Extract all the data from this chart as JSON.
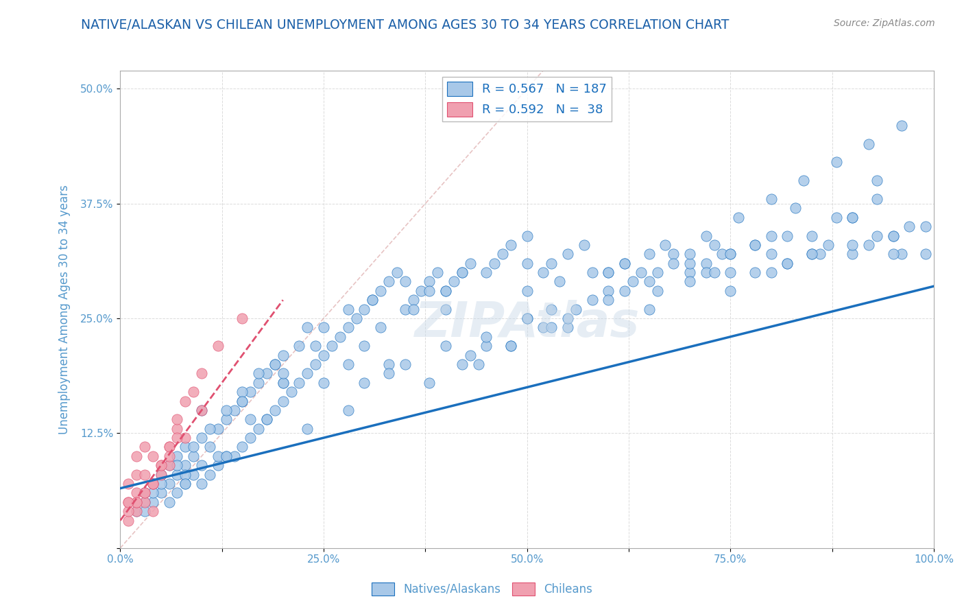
{
  "title": "NATIVE/ALASKAN VS CHILEAN UNEMPLOYMENT AMONG AGES 30 TO 34 YEARS CORRELATION CHART",
  "source_text": "Source: ZipAtlas.com",
  "xlabel": "",
  "ylabel": "Unemployment Among Ages 30 to 34 years",
  "xlim": [
    0,
    1.0
  ],
  "ylim": [
    0,
    0.52
  ],
  "xticks": [
    0.0,
    0.125,
    0.25,
    0.375,
    0.5,
    0.625,
    0.75,
    0.875,
    1.0
  ],
  "xticklabels": [
    "0.0%",
    "",
    "25.0%",
    "",
    "50.0%",
    "",
    "75.0%",
    "",
    "100.0%"
  ],
  "yticks": [
    0.0,
    0.125,
    0.25,
    0.375,
    0.5
  ],
  "yticklabels": [
    "",
    "12.5%",
    "25.0%",
    "37.5%",
    "50.0%"
  ],
  "legend_blue_r": "R = 0.567",
  "legend_blue_n": "N = 187",
  "legend_pink_r": "R = 0.592",
  "legend_pink_n": "N =  38",
  "blue_color": "#a8c8e8",
  "blue_line_color": "#1a6fbd",
  "pink_color": "#f0a0b0",
  "pink_line_color": "#e05070",
  "title_color": "#1a5fa8",
  "axis_color": "#5599cc",
  "watermark": "ZIPAtlas",
  "blue_scatter_x": [
    0.02,
    0.03,
    0.04,
    0.04,
    0.05,
    0.05,
    0.06,
    0.06,
    0.06,
    0.07,
    0.07,
    0.07,
    0.08,
    0.08,
    0.08,
    0.09,
    0.09,
    0.1,
    0.1,
    0.1,
    0.11,
    0.11,
    0.12,
    0.12,
    0.13,
    0.13,
    0.14,
    0.14,
    0.15,
    0.15,
    0.16,
    0.16,
    0.17,
    0.17,
    0.18,
    0.18,
    0.19,
    0.19,
    0.2,
    0.2,
    0.21,
    0.22,
    0.23,
    0.23,
    0.24,
    0.25,
    0.26,
    0.27,
    0.28,
    0.29,
    0.3,
    0.31,
    0.32,
    0.33,
    0.34,
    0.35,
    0.36,
    0.37,
    0.38,
    0.39,
    0.4,
    0.41,
    0.42,
    0.43,
    0.45,
    0.47,
    0.48,
    0.5,
    0.52,
    0.53,
    0.55,
    0.57,
    0.6,
    0.62,
    0.65,
    0.67,
    0.7,
    0.72,
    0.75,
    0.78,
    0.8,
    0.82,
    0.85,
    0.87,
    0.9,
    0.92,
    0.95,
    0.97,
    0.99,
    0.03,
    0.05,
    0.07,
    0.09,
    0.11,
    0.13,
    0.15,
    0.17,
    0.19,
    0.22,
    0.25,
    0.28,
    0.31,
    0.35,
    0.38,
    0.42,
    0.46,
    0.5,
    0.54,
    0.58,
    0.62,
    0.66,
    0.7,
    0.74,
    0.78,
    0.82,
    0.86,
    0.9,
    0.93,
    0.96,
    0.04,
    0.08,
    0.12,
    0.16,
    0.2,
    0.24,
    0.28,
    0.32,
    0.36,
    0.4,
    0.44,
    0.48,
    0.52,
    0.56,
    0.6,
    0.64,
    0.68,
    0.72,
    0.76,
    0.8,
    0.84,
    0.88,
    0.92,
    0.96,
    0.1,
    0.2,
    0.3,
    0.4,
    0.5,
    0.6,
    0.7,
    0.8,
    0.9,
    0.35,
    0.45,
    0.55,
    0.65,
    0.75,
    0.85,
    0.95,
    0.25,
    0.5,
    0.75,
    0.33,
    0.66,
    0.99,
    0.15,
    0.45,
    0.75,
    0.2,
    0.6,
    0.85,
    0.4,
    0.7,
    0.55,
    0.8,
    0.65,
    0.9,
    0.3,
    0.5,
    0.72,
    0.88,
    0.95,
    0.42,
    0.62,
    0.82,
    0.18,
    0.58,
    0.78,
    0.38,
    0.68,
    0.48,
    0.28,
    0.08,
    0.53,
    0.73,
    0.93,
    0.23,
    0.43,
    0.63,
    0.83,
    0.03,
    0.13,
    0.33,
    0.53,
    0.73,
    0.93
  ],
  "blue_scatter_y": [
    0.04,
    0.06,
    0.05,
    0.07,
    0.06,
    0.08,
    0.05,
    0.07,
    0.09,
    0.06,
    0.08,
    0.1,
    0.07,
    0.09,
    0.11,
    0.08,
    0.1,
    0.07,
    0.09,
    0.12,
    0.08,
    0.11,
    0.09,
    0.13,
    0.1,
    0.14,
    0.1,
    0.15,
    0.11,
    0.16,
    0.12,
    0.17,
    0.13,
    0.18,
    0.14,
    0.19,
    0.15,
    0.2,
    0.16,
    0.21,
    0.17,
    0.18,
    0.19,
    0.24,
    0.2,
    0.21,
    0.22,
    0.23,
    0.24,
    0.25,
    0.26,
    0.27,
    0.28,
    0.29,
    0.3,
    0.26,
    0.27,
    0.28,
    0.29,
    0.3,
    0.28,
    0.29,
    0.3,
    0.31,
    0.3,
    0.32,
    0.33,
    0.34,
    0.3,
    0.31,
    0.32,
    0.33,
    0.3,
    0.31,
    0.32,
    0.33,
    0.3,
    0.31,
    0.32,
    0.33,
    0.3,
    0.31,
    0.32,
    0.33,
    0.32,
    0.33,
    0.34,
    0.35,
    0.32,
    0.05,
    0.07,
    0.09,
    0.11,
    0.13,
    0.15,
    0.17,
    0.19,
    0.2,
    0.22,
    0.24,
    0.26,
    0.27,
    0.29,
    0.28,
    0.3,
    0.31,
    0.31,
    0.29,
    0.3,
    0.31,
    0.3,
    0.31,
    0.32,
    0.3,
    0.31,
    0.32,
    0.33,
    0.34,
    0.32,
    0.06,
    0.08,
    0.1,
    0.14,
    0.18,
    0.22,
    0.2,
    0.24,
    0.26,
    0.28,
    0.2,
    0.22,
    0.24,
    0.26,
    0.28,
    0.3,
    0.32,
    0.34,
    0.36,
    0.38,
    0.4,
    0.42,
    0.44,
    0.46,
    0.15,
    0.18,
    0.22,
    0.26,
    0.28,
    0.3,
    0.32,
    0.34,
    0.36,
    0.2,
    0.22,
    0.24,
    0.26,
    0.28,
    0.32,
    0.34,
    0.18,
    0.25,
    0.32,
    0.2,
    0.28,
    0.35,
    0.16,
    0.23,
    0.3,
    0.19,
    0.27,
    0.34,
    0.22,
    0.29,
    0.25,
    0.32,
    0.29,
    0.36,
    0.18,
    0.25,
    0.3,
    0.36,
    0.32,
    0.2,
    0.28,
    0.34,
    0.14,
    0.27,
    0.33,
    0.18,
    0.31,
    0.22,
    0.15,
    0.07,
    0.24,
    0.3,
    0.38,
    0.13,
    0.21,
    0.29,
    0.37,
    0.04,
    0.1,
    0.19,
    0.26,
    0.33,
    0.4
  ],
  "pink_scatter_x": [
    0.01,
    0.01,
    0.01,
    0.02,
    0.02,
    0.02,
    0.02,
    0.03,
    0.03,
    0.03,
    0.04,
    0.04,
    0.05,
    0.06,
    0.07,
    0.08,
    0.1,
    0.12,
    0.15,
    0.04,
    0.06,
    0.08,
    0.1,
    0.03,
    0.05,
    0.07,
    0.09,
    0.02,
    0.04,
    0.06,
    0.01,
    0.03,
    0.05,
    0.07,
    0.02,
    0.04,
    0.06,
    0.01
  ],
  "pink_scatter_y": [
    0.03,
    0.05,
    0.07,
    0.04,
    0.06,
    0.08,
    0.1,
    0.05,
    0.08,
    0.11,
    0.07,
    0.1,
    0.09,
    0.11,
    0.13,
    0.16,
    0.19,
    0.22,
    0.25,
    0.04,
    0.09,
    0.12,
    0.15,
    0.06,
    0.08,
    0.12,
    0.17,
    0.05,
    0.07,
    0.11,
    0.04,
    0.06,
    0.09,
    0.14,
    0.05,
    0.07,
    0.1,
    0.05
  ],
  "blue_trend_x": [
    0.0,
    1.0
  ],
  "blue_trend_y": [
    0.065,
    0.285
  ],
  "pink_trend_x": [
    0.0,
    0.2
  ],
  "pink_trend_y": [
    0.03,
    0.27
  ]
}
